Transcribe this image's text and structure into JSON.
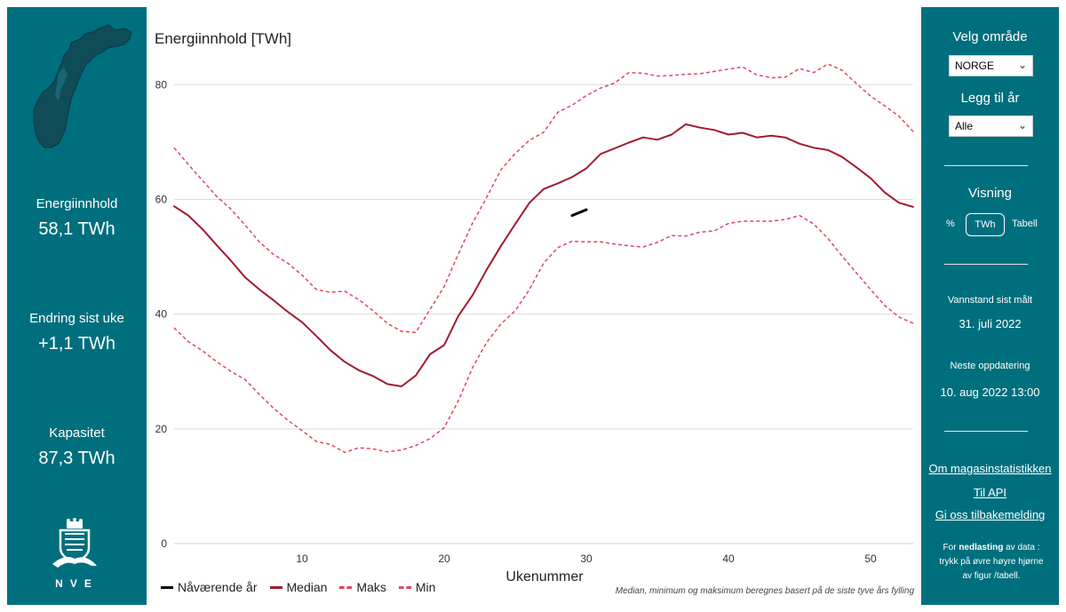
{
  "left_panel": {
    "stats": [
      {
        "label": "Energiinnhold",
        "value": "58,1 TWh"
      },
      {
        "label": "Endring sist uke",
        "value": "+1,1 TWh"
      },
      {
        "label": "Kapasitet",
        "value": "87,3 TWh"
      }
    ],
    "logo_text": "NVE"
  },
  "right_panel": {
    "area_label": "Velg område",
    "area_selected": "NORGE",
    "year_label": "Legg til år",
    "year_selected": "Alle",
    "view_label": "Visning",
    "view_options": {
      "percent": "%",
      "twh": "TWh",
      "table": "Tabell"
    },
    "measured_label": "Vannstand sist målt",
    "measured_value": "31. juli 2022",
    "next_update_label": "Neste oppdatering",
    "next_update_value": "10. aug 2022 13:00",
    "links": [
      "Om magasinstatistikken",
      "Til API",
      "Gi oss tilbakemelding"
    ],
    "download_note_pre": "For ",
    "download_note_bold": "nedlasting",
    "download_note_post": " av data : trykk på øvre høyre hjørne av figur /tabell."
  },
  "colors": {
    "panel": "#006f7d",
    "current": "#000000",
    "median": "#a01c2e",
    "band": "#e0475a"
  },
  "chart_data": {
    "type": "line",
    "title": "Energiinnhold [TWh]",
    "xlabel": "Ukenummer",
    "ylabel": "",
    "xlim": [
      1,
      53
    ],
    "ylim": [
      0,
      85
    ],
    "yticks": [
      0,
      20,
      40,
      60,
      80
    ],
    "xticks": [
      10,
      20,
      30,
      40,
      50
    ],
    "series": [
      {
        "name": "Nåværende år",
        "style": "solid",
        "color": "#000000",
        "x": [
          29,
          30
        ],
        "y": [
          57.2,
          58.2
        ]
      },
      {
        "name": "Median",
        "style": "solid",
        "color": "#a01c2e",
        "x": [
          1,
          2,
          3,
          4,
          5,
          6,
          7,
          8,
          9,
          10,
          11,
          12,
          13,
          14,
          15,
          16,
          17,
          18,
          19,
          20,
          21,
          22,
          23,
          24,
          25,
          26,
          27,
          28,
          29,
          30,
          31,
          32,
          33,
          34,
          35,
          36,
          37,
          38,
          39,
          40,
          41,
          42,
          43,
          44,
          45,
          46,
          47,
          48,
          49,
          50,
          51,
          52,
          53
        ],
        "y": [
          58.8,
          57.2,
          54.8,
          52.0,
          49.3,
          46.4,
          44.3,
          42.4,
          40.4,
          38.6,
          36.2,
          33.7,
          31.7,
          30.2,
          29.2,
          27.8,
          27.4,
          29.3,
          33.0,
          34.6,
          39.7,
          43.3,
          47.8,
          51.9,
          55.7,
          59.4,
          61.8,
          62.8,
          63.9,
          65.4,
          67.9,
          68.9,
          69.9,
          70.8,
          70.4,
          71.3,
          73.1,
          72.5,
          72.1,
          71.3,
          71.6,
          70.8,
          71.1,
          70.8,
          69.7,
          69.0,
          68.6,
          67.4,
          65.6,
          63.7,
          61.2,
          59.4,
          58.7
        ]
      },
      {
        "name": "Maks",
        "style": "dashed",
        "color": "#e0475a",
        "x": [
          1,
          2,
          3,
          4,
          5,
          6,
          7,
          8,
          9,
          10,
          11,
          12,
          13,
          14,
          15,
          16,
          17,
          18,
          19,
          20,
          21,
          22,
          23,
          24,
          25,
          26,
          27,
          28,
          29,
          30,
          31,
          32,
          33,
          34,
          35,
          36,
          37,
          38,
          39,
          40,
          41,
          42,
          43,
          44,
          45,
          46,
          47,
          48,
          49,
          50,
          51,
          52,
          53
        ],
        "y": [
          69.0,
          66.1,
          63.3,
          60.5,
          58.3,
          55.5,
          52.6,
          50.4,
          48.9,
          46.8,
          44.3,
          43.8,
          44.0,
          42.5,
          40.6,
          38.4,
          37.0,
          36.8,
          40.8,
          44.8,
          50.5,
          55.9,
          60.4,
          65.2,
          68.0,
          70.3,
          71.7,
          75.2,
          76.4,
          78.1,
          79.4,
          80.3,
          82.1,
          82.0,
          81.5,
          81.6,
          81.8,
          81.9,
          82.3,
          82.7,
          83.1,
          81.7,
          81.2,
          81.3,
          82.8,
          82.1,
          83.6,
          82.5,
          80.2,
          78.0,
          76.3,
          74.5,
          71.8
        ]
      },
      {
        "name": "Min",
        "style": "dashed",
        "color": "#e0475a",
        "x": [
          1,
          2,
          3,
          4,
          5,
          6,
          7,
          8,
          9,
          10,
          11,
          12,
          13,
          14,
          15,
          16,
          17,
          18,
          19,
          20,
          21,
          22,
          23,
          24,
          25,
          26,
          27,
          28,
          29,
          30,
          31,
          32,
          33,
          34,
          35,
          36,
          37,
          38,
          39,
          40,
          41,
          42,
          43,
          44,
          45,
          46,
          47,
          48,
          49,
          50,
          51,
          52,
          53
        ],
        "y": [
          37.6,
          35.2,
          33.6,
          31.7,
          30.0,
          28.6,
          26.0,
          23.6,
          21.5,
          19.7,
          17.8,
          17.3,
          15.9,
          16.7,
          16.5,
          16.0,
          16.3,
          17.1,
          18.3,
          20.2,
          24.9,
          30.7,
          35.1,
          38.3,
          40.6,
          44.3,
          48.9,
          51.6,
          52.7,
          52.6,
          52.6,
          52.2,
          51.9,
          51.7,
          52.5,
          53.7,
          53.6,
          54.3,
          54.5,
          55.8,
          56.2,
          56.2,
          56.2,
          56.5,
          57.2,
          55.7,
          53.2,
          50.1,
          47.2,
          44.3,
          41.5,
          39.5,
          38.4
        ]
      }
    ],
    "legend": [
      "Nåværende år",
      "Median",
      "Maks",
      "Min"
    ],
    "footnote": "Median, minimum og maksimum beregnes basert på de siste tyve års fylling"
  }
}
